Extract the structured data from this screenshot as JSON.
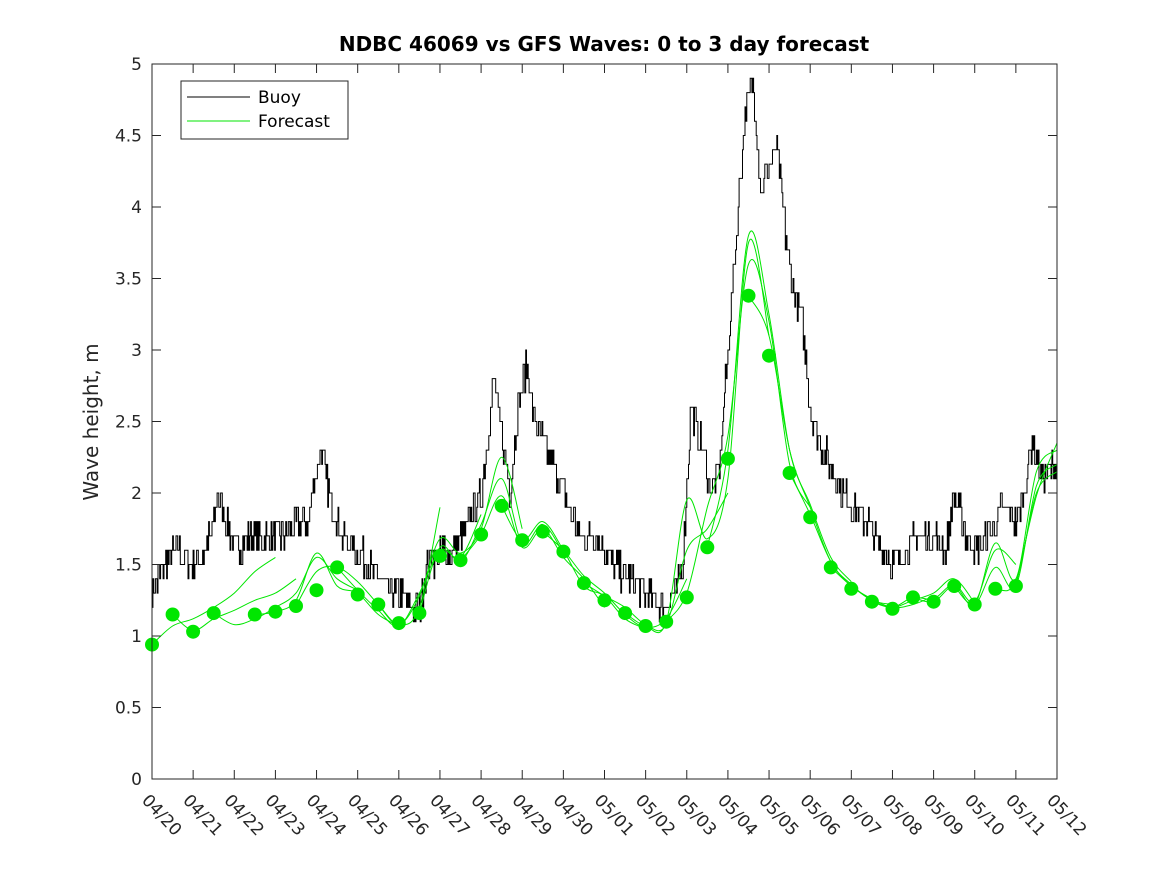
{
  "chart_data": {
    "type": "line",
    "title": "NDBC 46069 vs GFS Waves: 0 to 3 day forecast",
    "xlabel": "",
    "ylabel": "Wave height, m",
    "ylim": [
      0,
      5
    ],
    "yticks": [
      "0",
      "0.5",
      "1",
      "1.5",
      "2",
      "2.5",
      "3",
      "3.5",
      "4",
      "4.5",
      "5"
    ],
    "xlim_days": [
      0,
      22
    ],
    "xticks": [
      "04/20",
      "04/21",
      "04/22",
      "04/23",
      "04/24",
      "04/25",
      "04/26",
      "04/27",
      "04/28",
      "04/29",
      "04/30",
      "05/01",
      "05/02",
      "05/03",
      "05/04",
      "05/05",
      "05/06",
      "05/07",
      "05/08",
      "05/09",
      "05/10",
      "05/11",
      "05/12"
    ],
    "legend": {
      "location": "top-left",
      "entries": [
        "Buoy",
        "Forecast"
      ]
    },
    "colors": {
      "buoy": "#000000",
      "forecast": "#00e600"
    },
    "buoy": {
      "name": "Buoy",
      "x": [
        0,
        0.3,
        0.6,
        1.0,
        1.3,
        1.5,
        1.6,
        1.8,
        2.0,
        2.4,
        2.8,
        3.2,
        3.5,
        3.8,
        3.95,
        4.1,
        4.3,
        4.6,
        5.0,
        5.5,
        5.8,
        6.0,
        6.3,
        6.5,
        6.7,
        7.0,
        7.3,
        7.7,
        8.0,
        8.2,
        8.3,
        8.5,
        8.7,
        8.9,
        9.1,
        9.3,
        9.6,
        10.0,
        10.4,
        10.8,
        11.2,
        11.6,
        12.0,
        12.4,
        12.7,
        12.9,
        13.1,
        13.3,
        13.6,
        13.8,
        14.0,
        14.2,
        14.4,
        14.6,
        14.8,
        15.0,
        15.2,
        15.4,
        15.6,
        15.8,
        16.0,
        16.3,
        16.5,
        16.8,
        17.0,
        17.4,
        17.8,
        18.0,
        18.3,
        18.6,
        19.0,
        19.3,
        19.5,
        19.8,
        20.0,
        20.3,
        20.5,
        20.7,
        21.0,
        21.1,
        21.2,
        21.4,
        21.6,
        22.0
      ],
      "values": [
        1.3,
        1.5,
        1.6,
        1.5,
        1.6,
        1.8,
        2.0,
        1.8,
        1.6,
        1.7,
        1.7,
        1.7,
        1.8,
        1.8,
        2.1,
        2.3,
        2.0,
        1.7,
        1.6,
        1.4,
        1.3,
        1.3,
        1.2,
        1.2,
        1.5,
        1.6,
        1.6,
        1.8,
        2.0,
        2.5,
        2.8,
        2.4,
        2.0,
        2.6,
        2.9,
        2.5,
        2.3,
        2.0,
        1.7,
        1.7,
        1.5,
        1.4,
        1.3,
        1.2,
        1.3,
        1.5,
        2.6,
        2.4,
        2.0,
        2.2,
        3.0,
        3.8,
        4.6,
        4.9,
        4.1,
        4.3,
        4.4,
        3.8,
        3.4,
        3.2,
        2.6,
        2.3,
        2.2,
        2.0,
        1.9,
        1.8,
        1.6,
        1.5,
        1.6,
        1.7,
        1.7,
        1.6,
        2.0,
        1.7,
        1.6,
        1.7,
        1.8,
        1.9,
        1.8,
        1.9,
        2.0,
        2.4,
        2.1,
        2.2
      ]
    },
    "forecast_markers": {
      "name": "Forecast",
      "x": [
        0,
        0.5,
        1.0,
        1.5,
        2.5,
        3.0,
        3.5,
        4.0,
        4.5,
        5.0,
        5.5,
        6.0,
        6.5,
        7.0,
        7.5,
        8.0,
        8.5,
        9.0,
        9.5,
        10.0,
        10.5,
        11.0,
        11.5,
        12.0,
        12.5,
        13.0,
        13.5,
        14.0,
        14.5,
        15.0,
        15.5,
        16.0,
        16.5,
        17.0,
        17.5,
        18.0,
        18.5,
        19.0,
        19.5,
        20.0,
        20.5,
        21.0
      ],
      "values": [
        0.94,
        1.15,
        1.03,
        1.16,
        1.15,
        1.17,
        1.21,
        1.32,
        1.48,
        1.29,
        1.22,
        1.09,
        1.16,
        1.56,
        1.53,
        1.71,
        1.91,
        1.67,
        1.73,
        1.59,
        1.37,
        1.25,
        1.16,
        1.07,
        1.1,
        1.27,
        1.62,
        2.24,
        3.38,
        2.96,
        2.14,
        1.83,
        1.48,
        1.33,
        1.24,
        1.19,
        1.27,
        1.24,
        1.35,
        1.22,
        1.33,
        1.35
      ]
    },
    "forecast_runs": [
      {
        "x": [
          0,
          0.5,
          1.0,
          1.5,
          2.0,
          2.5,
          3.0
        ],
        "values": [
          0.94,
          1.07,
          1.12,
          1.2,
          1.3,
          1.45,
          1.55
        ]
      },
      {
        "x": [
          0.5,
          1.0,
          1.5,
          2.0,
          2.5,
          3.0,
          3.5
        ],
        "values": [
          1.15,
          1.04,
          1.12,
          1.18,
          1.25,
          1.3,
          1.4
        ]
      },
      {
        "x": [
          1.5,
          2.0,
          2.5,
          3.0,
          3.5,
          4.0,
          4.5,
          5.0
        ],
        "values": [
          1.16,
          1.08,
          1.12,
          1.2,
          1.3,
          1.55,
          1.4,
          1.32
        ]
      },
      {
        "x": [
          2.5,
          3.0,
          3.5,
          4.0,
          4.5,
          5.0,
          5.5,
          6.0
        ],
        "values": [
          1.15,
          1.17,
          1.25,
          1.58,
          1.35,
          1.3,
          1.15,
          1.07
        ]
      },
      {
        "x": [
          3.5,
          4.0,
          4.5,
          5.0,
          5.5,
          6.0,
          6.5,
          7.0
        ],
        "values": [
          1.21,
          1.45,
          1.48,
          1.38,
          1.22,
          1.08,
          1.2,
          1.9
        ]
      },
      {
        "x": [
          4.5,
          5.0,
          5.5,
          6.0,
          6.5,
          7.0,
          7.5,
          8.0
        ],
        "values": [
          1.48,
          1.32,
          1.18,
          1.07,
          1.3,
          1.6,
          1.55,
          1.85
        ]
      },
      {
        "x": [
          5.5,
          6.0,
          6.5,
          7.0,
          7.5,
          8.0,
          8.5,
          9.0
        ],
        "values": [
          1.22,
          1.08,
          1.28,
          1.68,
          1.58,
          1.75,
          2.25,
          1.75
        ]
      },
      {
        "x": [
          6.5,
          7.0,
          7.5,
          8.0,
          8.5,
          9.0,
          9.5,
          10.0
        ],
        "values": [
          1.16,
          1.62,
          1.52,
          1.78,
          2.1,
          1.65,
          1.78,
          1.58
        ]
      },
      {
        "x": [
          7.5,
          8.0,
          8.5,
          9.0,
          9.5,
          10.0,
          10.5,
          11.0
        ],
        "values": [
          1.53,
          1.71,
          1.98,
          1.62,
          1.75,
          1.55,
          1.4,
          1.2
        ]
      },
      {
        "x": [
          8.5,
          9.0,
          9.5,
          10.0,
          10.5,
          11.0,
          11.5,
          12.0
        ],
        "values": [
          1.91,
          1.67,
          1.8,
          1.6,
          1.35,
          1.28,
          1.12,
          1.05
        ]
      },
      {
        "x": [
          9.5,
          10.0,
          10.5,
          11.0,
          11.5,
          12.0,
          12.5,
          13.0
        ],
        "values": [
          1.73,
          1.6,
          1.42,
          1.3,
          1.15,
          1.06,
          1.12,
          1.4
        ]
      },
      {
        "x": [
          10.5,
          11.0,
          11.5,
          12.0,
          12.5,
          13.0,
          13.5,
          14.0
        ],
        "values": [
          1.37,
          1.28,
          1.2,
          1.08,
          1.08,
          1.6,
          1.75,
          2.0
        ]
      },
      {
        "x": [
          11.5,
          12.0,
          12.5,
          13.0,
          13.5,
          14.0,
          14.5,
          15.0
        ],
        "values": [
          1.16,
          1.07,
          1.1,
          1.95,
          1.68,
          2.1,
          3.75,
          3.1
        ]
      },
      {
        "x": [
          12.5,
          13.0,
          13.5,
          14.0,
          14.5,
          15.0,
          15.5,
          16.0
        ],
        "values": [
          1.1,
          1.3,
          1.9,
          2.4,
          3.6,
          3.2,
          2.2,
          1.9
        ]
      },
      {
        "x": [
          13.5,
          14.0,
          14.5,
          15.0,
          15.5,
          16.0,
          16.5,
          17.0
        ],
        "values": [
          1.62,
          2.3,
          3.8,
          3.25,
          2.3,
          1.92,
          1.55,
          1.38
        ]
      },
      {
        "x": [
          14.5,
          15.0,
          15.5,
          16.0,
          16.5,
          17.0,
          17.5,
          18.0
        ],
        "values": [
          3.38,
          3.1,
          2.3,
          1.9,
          1.52,
          1.36,
          1.25,
          1.22
        ]
      },
      {
        "x": [
          15.5,
          16.0,
          16.5,
          17.0,
          17.5,
          18.0,
          18.5,
          19.0
        ],
        "values": [
          2.14,
          1.85,
          1.52,
          1.35,
          1.26,
          1.2,
          1.22,
          1.28
        ]
      },
      {
        "x": [
          16.5,
          17.0,
          17.5,
          18.0,
          18.5,
          19.0,
          19.5,
          20.0
        ],
        "values": [
          1.48,
          1.35,
          1.25,
          1.2,
          1.25,
          1.3,
          1.4,
          1.23
        ]
      },
      {
        "x": [
          17.5,
          18.0,
          18.5,
          19.0,
          19.5,
          20.0,
          20.5,
          21.0
        ],
        "values": [
          1.24,
          1.2,
          1.27,
          1.26,
          1.36,
          1.24,
          1.6,
          1.5
        ]
      },
      {
        "x": [
          18.5,
          19.0,
          19.5,
          20.0,
          20.5,
          21.0,
          21.5,
          22.0
        ],
        "values": [
          1.27,
          1.24,
          1.35,
          1.22,
          1.65,
          1.4,
          2.15,
          2.3
        ]
      },
      {
        "x": [
          19.5,
          20.0,
          20.5,
          21.0,
          21.5,
          22.0
        ],
        "values": [
          1.35,
          1.22,
          1.48,
          1.35,
          2.05,
          2.2
        ]
      },
      {
        "x": [
          20.5,
          21.0,
          21.5,
          22.0
        ],
        "values": [
          1.33,
          1.38,
          2.0,
          2.15
        ]
      },
      {
        "x": [
          21.0,
          21.5,
          22.0
        ],
        "values": [
          1.35,
          1.98,
          2.35
        ]
      }
    ]
  }
}
